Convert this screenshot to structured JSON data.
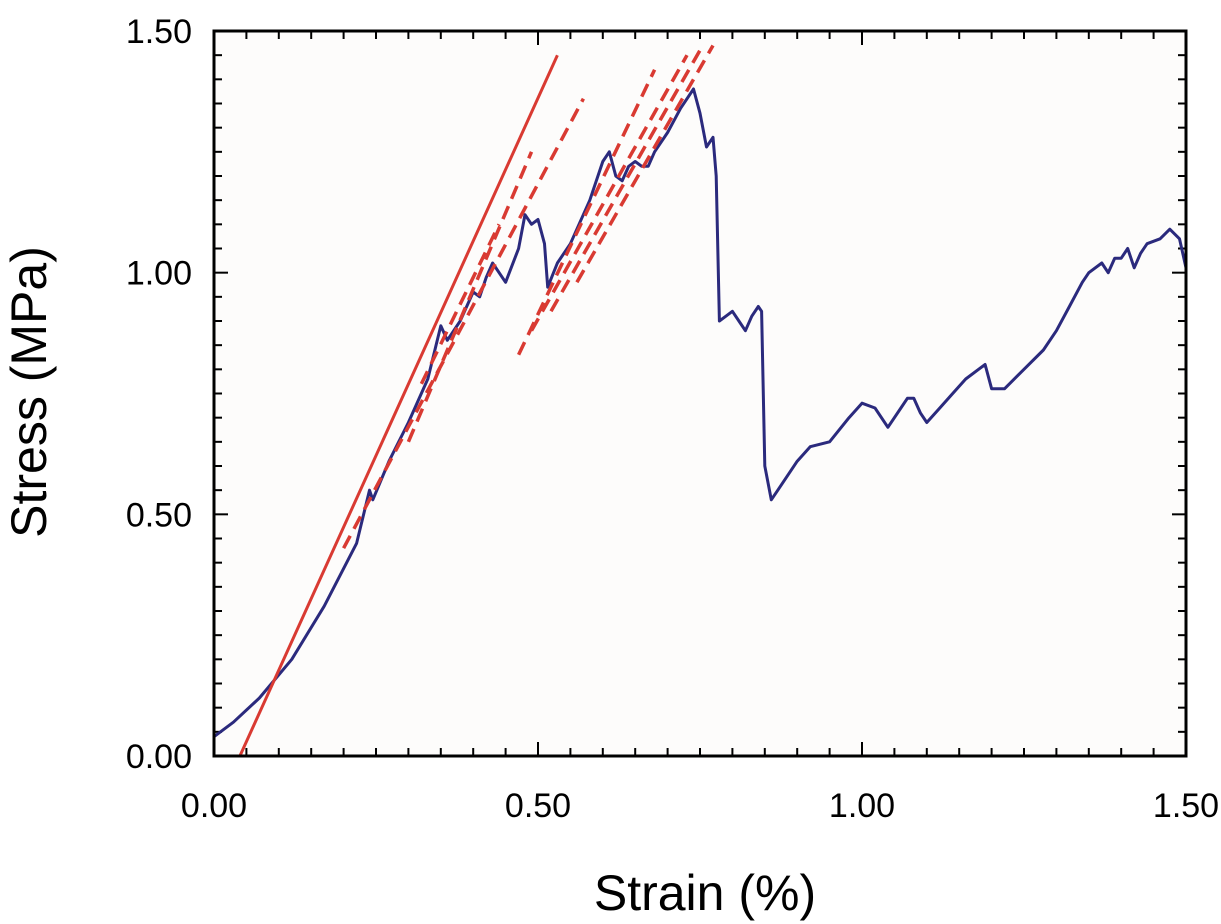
{
  "chart_data": {
    "type": "line",
    "xlabel": "Strain (%)",
    "ylabel": "Stress (MPa)",
    "xlim": [
      0,
      1.5
    ],
    "ylim": [
      0,
      1.5
    ],
    "x_ticks": [
      "0.00",
      "0.50",
      "1.00",
      "1.50"
    ],
    "y_ticks": [
      "0.00",
      "0.50",
      "1.00",
      "1.50"
    ],
    "grid": false,
    "legend": "none",
    "colors": {
      "stress_curve": "#2b2a7d",
      "fit_lines": "#d93a32",
      "axes": "#000000"
    },
    "series": [
      {
        "style": "solid",
        "color": "#2b2a7d",
        "x": [
          0.0,
          0.03,
          0.07,
          0.12,
          0.17,
          0.22,
          0.24,
          0.245,
          0.27,
          0.3,
          0.33,
          0.35,
          0.36,
          0.38,
          0.4,
          0.41,
          0.42,
          0.43,
          0.45,
          0.47,
          0.48,
          0.49,
          0.5,
          0.51,
          0.515,
          0.53,
          0.55,
          0.58,
          0.6,
          0.61,
          0.62,
          0.63,
          0.64,
          0.65,
          0.66,
          0.67,
          0.68,
          0.7,
          0.72,
          0.74,
          0.75,
          0.76,
          0.77,
          0.775,
          0.78,
          0.79,
          0.8,
          0.81,
          0.82,
          0.83,
          0.84,
          0.845,
          0.85,
          0.86,
          0.87,
          0.9,
          0.92,
          0.95,
          0.98,
          1.0,
          1.02,
          1.04,
          1.06,
          1.07,
          1.08,
          1.09,
          1.1,
          1.12,
          1.14,
          1.16,
          1.18,
          1.19,
          1.2,
          1.22,
          1.25,
          1.28,
          1.3,
          1.32,
          1.34,
          1.35,
          1.37,
          1.38,
          1.39,
          1.4,
          1.41,
          1.42,
          1.43,
          1.44,
          1.46,
          1.475,
          1.49,
          1.5
        ],
        "y": [
          0.04,
          0.07,
          0.12,
          0.2,
          0.31,
          0.44,
          0.55,
          0.53,
          0.61,
          0.69,
          0.78,
          0.89,
          0.86,
          0.9,
          0.96,
          0.95,
          0.99,
          1.02,
          0.98,
          1.05,
          1.12,
          1.1,
          1.11,
          1.06,
          0.97,
          1.02,
          1.06,
          1.15,
          1.23,
          1.25,
          1.2,
          1.19,
          1.22,
          1.23,
          1.22,
          1.22,
          1.25,
          1.29,
          1.34,
          1.38,
          1.33,
          1.26,
          1.28,
          1.2,
          0.9,
          0.91,
          0.92,
          0.9,
          0.88,
          0.91,
          0.93,
          0.92,
          0.6,
          0.53,
          0.55,
          0.61,
          0.64,
          0.65,
          0.7,
          0.73,
          0.72,
          0.68,
          0.72,
          0.74,
          0.74,
          0.71,
          0.69,
          0.72,
          0.75,
          0.78,
          0.8,
          0.81,
          0.76,
          0.76,
          0.8,
          0.84,
          0.88,
          0.93,
          0.98,
          1.0,
          1.02,
          1.0,
          1.03,
          1.03,
          1.05,
          1.01,
          1.04,
          1.06,
          1.07,
          1.09,
          1.07,
          1.01
        ]
      },
      {
        "style": "solid",
        "color": "#d93a32",
        "x": [
          0.04,
          0.53
        ],
        "y": [
          0.0,
          1.45
        ]
      },
      {
        "style": "dashed",
        "color": "#d93a32",
        "x": [
          0.2,
          0.57
        ],
        "y": [
          0.43,
          1.36
        ]
      },
      {
        "style": "dashed",
        "color": "#d93a32",
        "x": [
          0.3,
          0.49
        ],
        "y": [
          0.65,
          1.25
        ]
      },
      {
        "style": "dashed",
        "color": "#d93a32",
        "x": [
          0.32,
          0.44
        ],
        "y": [
          0.77,
          1.1
        ]
      },
      {
        "style": "dashed",
        "color": "#d93a32",
        "x": [
          0.47,
          0.68
        ],
        "y": [
          0.83,
          1.42
        ]
      },
      {
        "style": "dashed",
        "color": "#d93a32",
        "x": [
          0.49,
          0.73
        ],
        "y": [
          0.88,
          1.45
        ]
      },
      {
        "style": "dashed",
        "color": "#d93a32",
        "x": [
          0.52,
          0.75
        ],
        "y": [
          0.92,
          1.46
        ]
      },
      {
        "style": "dashed",
        "color": "#d93a32",
        "x": [
          0.56,
          0.77
        ],
        "y": [
          0.98,
          1.47
        ]
      }
    ]
  }
}
